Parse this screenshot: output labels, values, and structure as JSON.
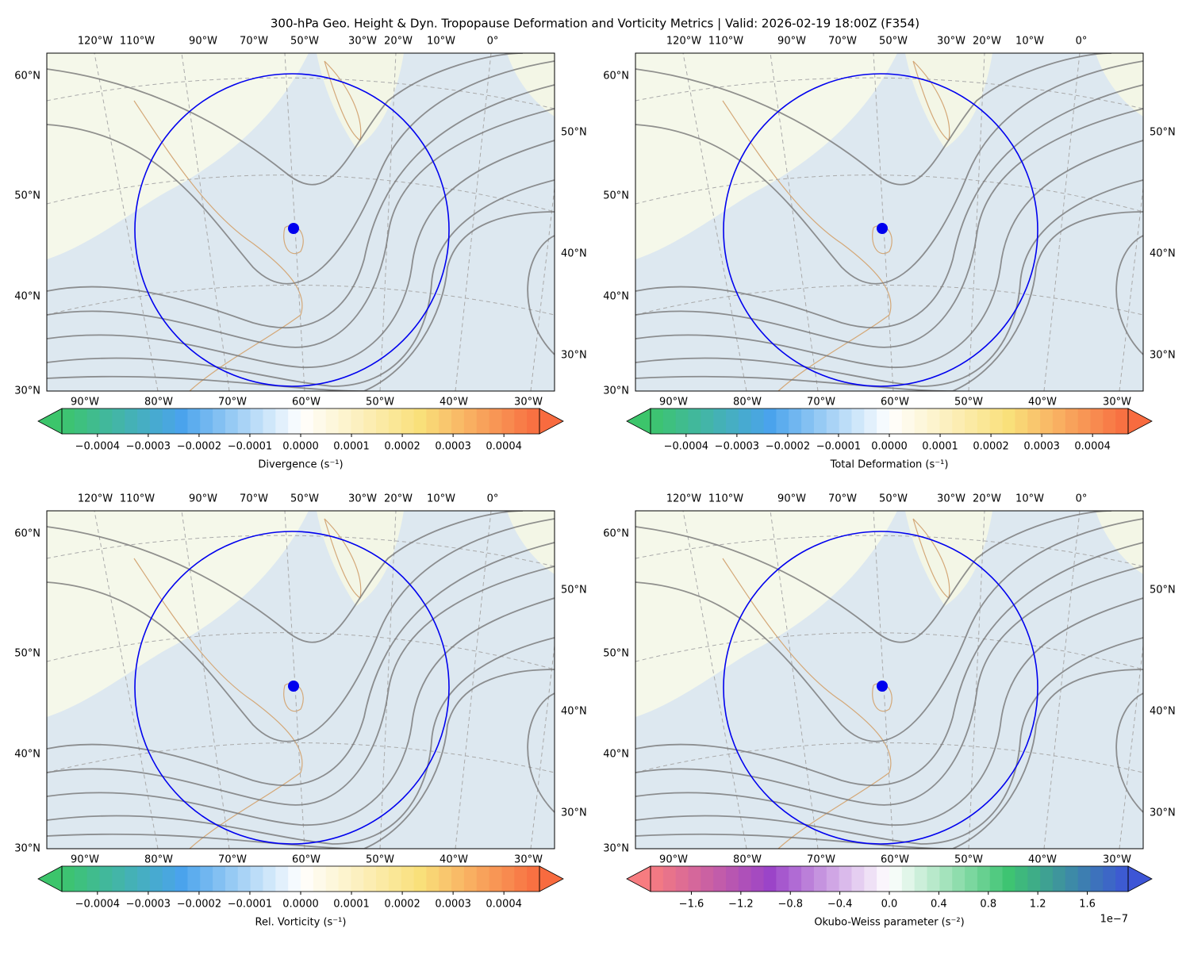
{
  "title": "300-hPa Geo. Height & Dyn. Tropopause Deformation and Vorticity Metrics |  Valid: 2026-02-19 18:00Z (F354)",
  "panels": [
    {
      "lon_top": [
        "120°W",
        "110°W",
        "90°W",
        "70°W",
        "50°W",
        "30°W",
        "20°W",
        "10°W",
        "0°"
      ],
      "lon_bottom": [
        "90°W",
        "80°W",
        "70°W",
        "60°W",
        "50°W",
        "40°W",
        "30°W"
      ],
      "lat_left": [
        "60°N",
        "50°N",
        "40°N",
        "30°N"
      ],
      "lat_right": [
        "50°N",
        "40°N",
        "30°N"
      ],
      "colorbar": {
        "label": "Divergence (s⁻¹)",
        "clim": [
          -0.00047,
          0.00047
        ],
        "colors": [
          "#3cc56b",
          "#4aa3ec",
          "#ffffff",
          "#f9e07a",
          "#f86b3f"
        ],
        "ticks": [
          {
            "value": -0.0004,
            "label": "−0.0004"
          },
          {
            "value": -0.0003,
            "label": "−0.0003"
          },
          {
            "value": -0.0002,
            "label": "−0.0002"
          },
          {
            "value": -0.0001,
            "label": "−0.0001"
          },
          {
            "value": 0,
            "label": "0.0000"
          },
          0.0001,
          0.0002,
          0.0003,
          0.0004
        ]
      }
    },
    {
      "lon_top": [
        "120°W",
        "110°W",
        "90°W",
        "70°W",
        "50°W",
        "30°W",
        "20°W",
        "10°W",
        "0°"
      ],
      "lon_bottom": [
        "90°W",
        "80°W",
        "70°W",
        "60°W",
        "50°W",
        "40°W",
        "30°W"
      ],
      "lat_left": [
        "60°N",
        "50°N",
        "40°N",
        "30°N"
      ],
      "lat_right": [
        "50°N",
        "40°N",
        "30°N"
      ],
      "colorbar": {
        "label": "Total Deformation (s⁻¹)",
        "clim": [
          -0.00047,
          0.00047
        ],
        "colors": [
          "#3cc56b",
          "#4aa3ec",
          "#ffffff",
          "#f9e07a",
          "#f86b3f"
        ],
        "ticks": [
          {
            "value": -0.0004,
            "label": "−0.0004"
          },
          {
            "value": -0.0003,
            "label": "−0.0003"
          },
          {
            "value": -0.0002,
            "label": "−0.0002"
          },
          {
            "value": -0.0001,
            "label": "−0.0001"
          },
          {
            "value": 0,
            "label": "0.0000"
          },
          0.0001,
          0.0002,
          0.0003,
          0.0004
        ]
      }
    },
    {
      "lon_top": [
        "120°W",
        "110°W",
        "90°W",
        "70°W",
        "50°W",
        "30°W",
        "20°W",
        "10°W",
        "0°"
      ],
      "lon_bottom": [
        "90°W",
        "80°W",
        "70°W",
        "60°W",
        "50°W",
        "40°W",
        "30°W"
      ],
      "lat_left": [
        "60°N",
        "50°N",
        "40°N",
        "30°N"
      ],
      "lat_right": [
        "50°N",
        "40°N",
        "30°N"
      ],
      "colorbar": {
        "label": "Rel. Vorticity (s⁻¹)",
        "clim": [
          -0.00047,
          0.00047
        ],
        "colors": [
          "#3cc56b",
          "#4aa3ec",
          "#ffffff",
          "#f9e07a",
          "#f86b3f"
        ],
        "ticks": [
          {
            "value": -0.0004,
            "label": "−0.0004"
          },
          {
            "value": -0.0003,
            "label": "−0.0003"
          },
          {
            "value": -0.0002,
            "label": "−0.0002"
          },
          {
            "value": -0.0001,
            "label": "−0.0001"
          },
          {
            "value": 0,
            "label": "0.0000"
          },
          0.0001,
          0.0002,
          0.0003,
          0.0004
        ]
      }
    },
    {
      "lon_top": [
        "120°W",
        "110°W",
        "90°W",
        "70°W",
        "50°W",
        "30°W",
        "20°W",
        "10°W",
        "0°"
      ],
      "lon_bottom": [
        "90°W",
        "80°W",
        "70°W",
        "60°W",
        "50°W",
        "40°W",
        "30°W"
      ],
      "lat_left": [
        "60°N",
        "50°N",
        "40°N",
        "30°N"
      ],
      "lat_right": [
        "50°N",
        "40°N",
        "30°N"
      ],
      "colorbar": {
        "label": "Okubo-Weiss parameter (s⁻²)",
        "clim": [
          -1.93,
          1.93
        ],
        "offset": "1e−7",
        "colors": [
          "#f77c80",
          "#9b44c8",
          "#ffffff",
          "#3ec472",
          "#3d55d6"
        ],
        "ticks": [
          {
            "value": -1.6,
            "label": "−1.6"
          },
          {
            "value": -1.2,
            "label": "−1.2"
          },
          {
            "value": -0.8,
            "label": "−0.8"
          },
          {
            "value": -0.4,
            "label": "−0.4"
          },
          {
            "value": 0,
            "label": "0.0"
          },
          0.4,
          0.8,
          1.2,
          1.6
        ]
      }
    }
  ]
}
